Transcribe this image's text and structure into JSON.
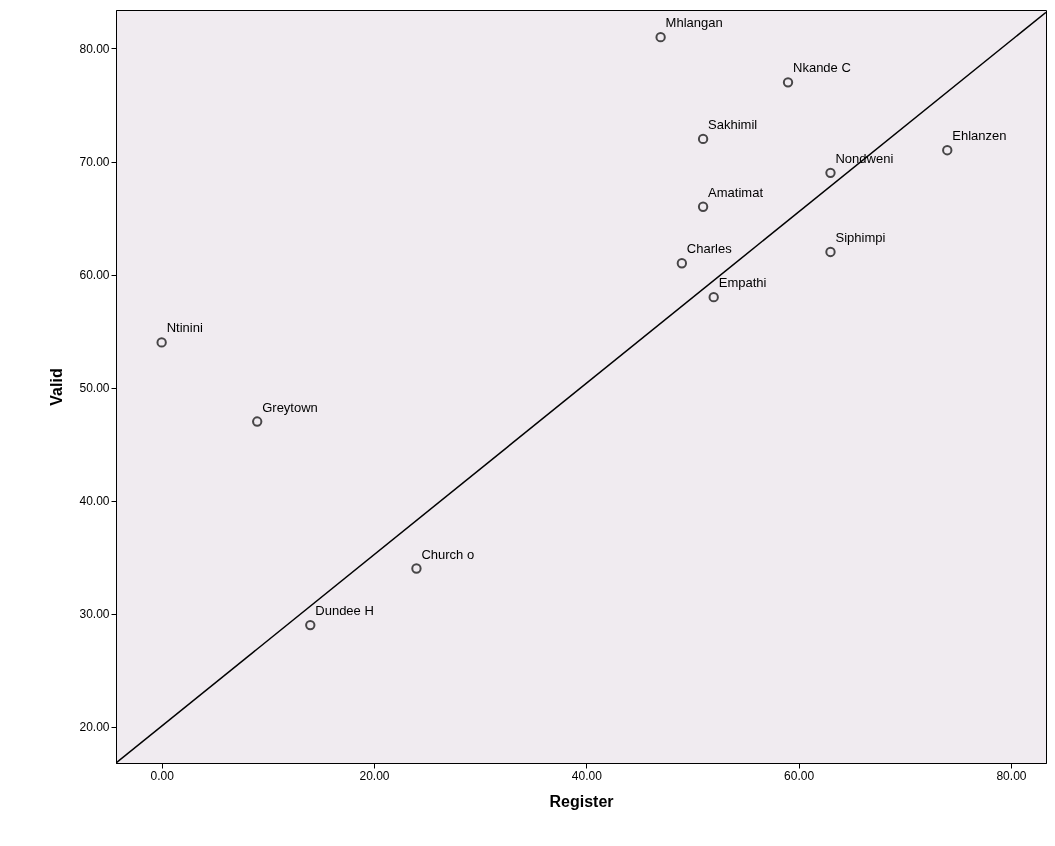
{
  "chart_data": {
    "type": "scatter",
    "xlabel": "Register",
    "ylabel": "Valid",
    "grid": false,
    "xlim": [
      -4.3,
      83.3
    ],
    "ylim": [
      16.8,
      83.4
    ],
    "xticks": [
      {
        "value": 0,
        "label": "0.00"
      },
      {
        "value": 20,
        "label": "20.00"
      },
      {
        "value": 40,
        "label": "40.00"
      },
      {
        "value": 60,
        "label": "60.00"
      },
      {
        "value": 80,
        "label": "80.00"
      }
    ],
    "yticks": [
      {
        "value": 20,
        "label": "20.00"
      },
      {
        "value": 30,
        "label": "30.00"
      },
      {
        "value": 40,
        "label": "40.00"
      },
      {
        "value": 50,
        "label": "50.00"
      },
      {
        "value": 60,
        "label": "60.00"
      },
      {
        "value": 70,
        "label": "70.00"
      },
      {
        "value": 80,
        "label": "80.00"
      }
    ],
    "series": [
      {
        "color": "#000000",
        "marker": "circle",
        "x": [
          0,
          9,
          14,
          24,
          49,
          52,
          51,
          51,
          47,
          59,
          63,
          63,
          74
        ],
        "values": [
          54,
          47,
          29,
          34,
          61,
          58,
          66,
          72,
          81,
          77,
          69,
          62,
          71
        ]
      },
      {
        "type": "line",
        "color": "#000000",
        "marker": "none",
        "x": [
          -4.3,
          83.3
        ],
        "values": [
          16.8,
          83.2
        ]
      }
    ],
    "annotations": [
      {
        "text": "Ntinini",
        "x": 0,
        "y": 54
      },
      {
        "text": "Greytown",
        "x": 9,
        "y": 47
      },
      {
        "text": "Dundee H",
        "x": 14,
        "y": 29
      },
      {
        "text": "Church o",
        "x": 24,
        "y": 34
      },
      {
        "text": "Charles",
        "x": 49,
        "y": 61
      },
      {
        "text": "Empathi",
        "x": 52,
        "y": 58
      },
      {
        "text": "Amatimat",
        "x": 51,
        "y": 66
      },
      {
        "text": "Sakhimil",
        "x": 51,
        "y": 72
      },
      {
        "text": "Mhlangan",
        "x": 47,
        "y": 81
      },
      {
        "text": "Nkande C",
        "x": 59,
        "y": 77
      },
      {
        "text": "Nondweni",
        "x": 63,
        "y": 69
      },
      {
        "text": "Siphimpi",
        "x": 63,
        "y": 62
      },
      {
        "text": "Ehlanzen",
        "x": 74,
        "y": 71
      }
    ]
  }
}
